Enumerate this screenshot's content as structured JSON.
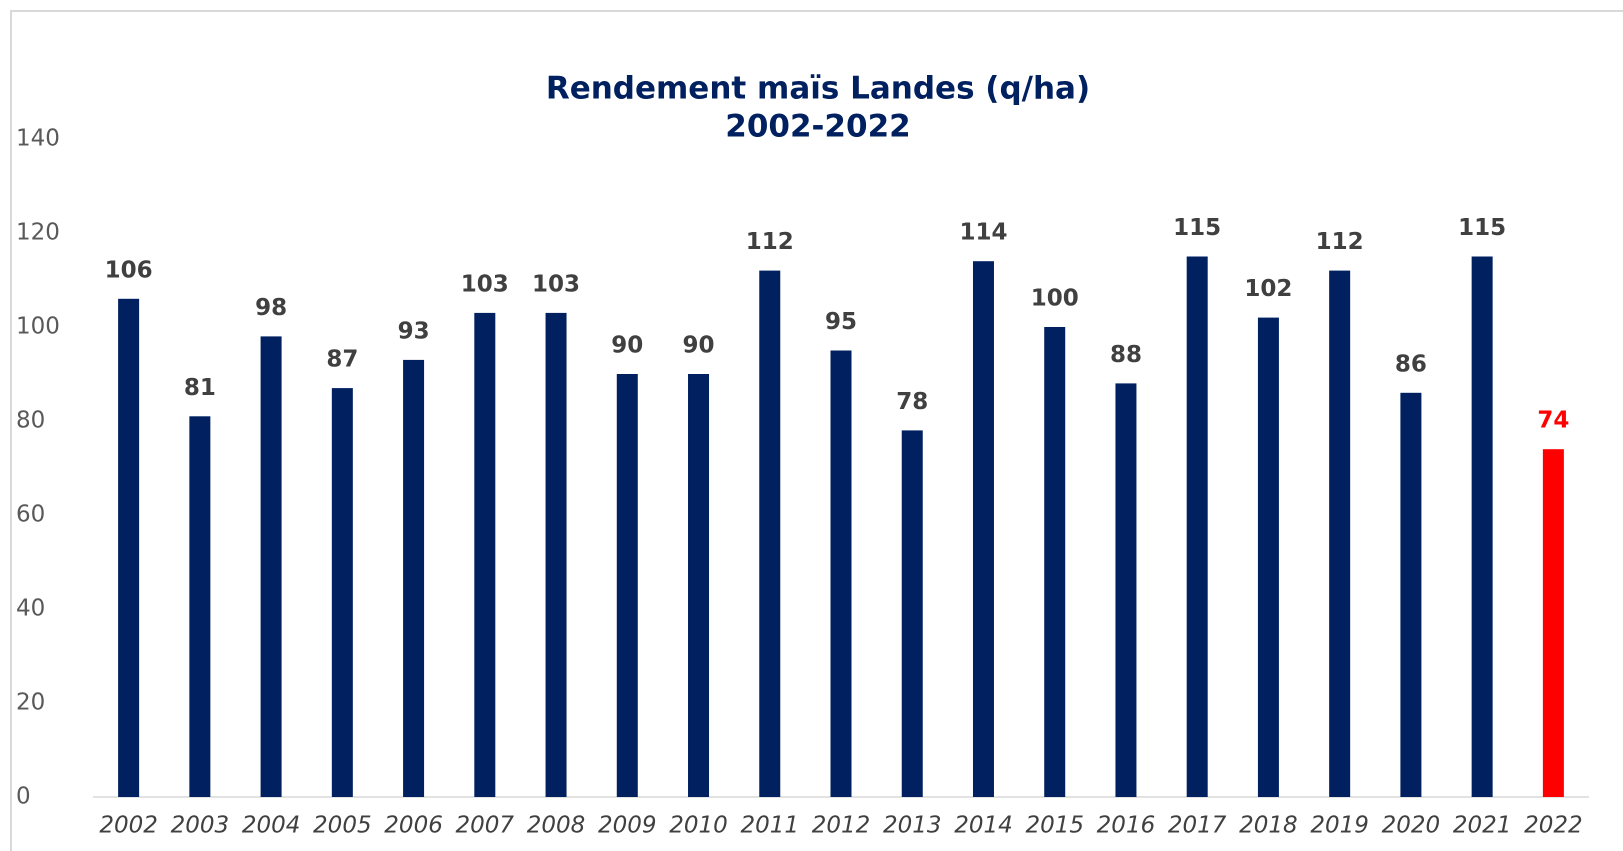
{
  "chart_data": {
    "type": "bar",
    "title": "Rendement maïs Landes (q/ha)",
    "subtitle": "2002-2022",
    "categories": [
      "2002",
      "2003",
      "2004",
      "2005",
      "2006",
      "2007",
      "2008",
      "2009",
      "2010",
      "2011",
      "2012",
      "2013",
      "2014",
      "2015",
      "2016",
      "2017",
      "2018",
      "2019",
      "2020",
      "2021",
      "2022"
    ],
    "values": [
      106,
      81,
      98,
      87,
      93,
      103,
      103,
      90,
      90,
      112,
      95,
      78,
      114,
      100,
      88,
      115,
      102,
      112,
      86,
      115,
      74
    ],
    "colors": [
      "#002060",
      "#002060",
      "#002060",
      "#002060",
      "#002060",
      "#002060",
      "#002060",
      "#002060",
      "#002060",
      "#002060",
      "#002060",
      "#002060",
      "#002060",
      "#002060",
      "#002060",
      "#002060",
      "#002060",
      "#002060",
      "#002060",
      "#002060",
      "#ff0000"
    ],
    "ylim": [
      0,
      140
    ],
    "yticks": [
      0,
      20,
      40,
      60,
      80,
      100,
      120,
      140
    ],
    "grid": false
  }
}
